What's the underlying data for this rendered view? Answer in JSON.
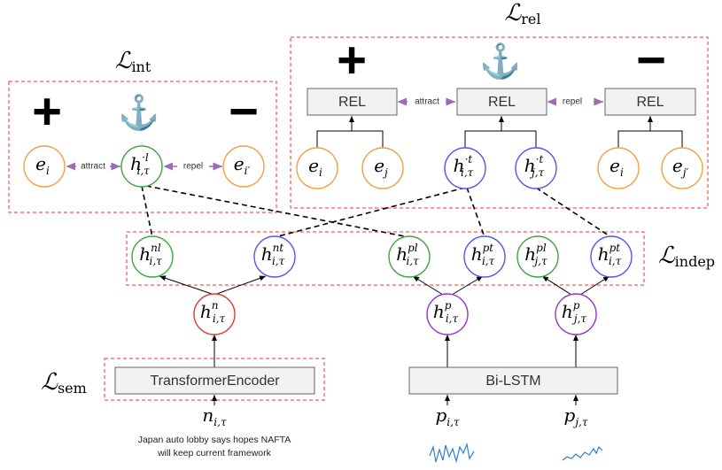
{
  "losses": [
    {
      "symbol": "ℒ",
      "sub": "int"
    },
    {
      "symbol": "ℒ",
      "sub": "rel"
    },
    {
      "symbol": "ℒ",
      "sub": "indep"
    },
    {
      "symbol": "ℒ",
      "sub": "sem"
    }
  ],
  "signs": {
    "left": [
      "+",
      "⚓",
      "−"
    ],
    "right": [
      "+",
      "⚓",
      "−"
    ]
  },
  "rel_boxes": [
    "REL",
    "REL",
    "REL"
  ],
  "relations": {
    "left": [
      "attract",
      "repel"
    ],
    "right": [
      "attract",
      "repel"
    ]
  },
  "encoders": [
    "TransformerEncoder",
    "Bi-LSTM"
  ],
  "caption": [
    "Japan auto lobby says hopes NAFTA",
    "will keep current framework"
  ],
  "nodes": [
    {
      "base": "e",
      "sup": "",
      "sub": "i",
      "color": "#f4a040"
    },
    {
      "base": "h",
      "sup": "·l",
      "sub": "i,τ",
      "color": "#3aa83a"
    },
    {
      "base": "e",
      "sup": "",
      "sub": "i′",
      "color": "#f4a040"
    },
    {
      "base": "e",
      "sup": "",
      "sub": "i",
      "color": "#f4a040"
    },
    {
      "base": "e",
      "sup": "",
      "sub": "j",
      "color": "#f4a040"
    },
    {
      "base": "h",
      "sup": "·t",
      "sub": "i,τ",
      "color": "#5555ee"
    },
    {
      "base": "h",
      "sup": "·t",
      "sub": "j,τ",
      "color": "#5555ee"
    },
    {
      "base": "e",
      "sup": "",
      "sub": "i",
      "color": "#f4a040"
    },
    {
      "base": "e",
      "sup": "",
      "sub": "j′",
      "color": "#f4a040"
    },
    {
      "base": "h",
      "sup": "nl",
      "sub": "i,τ",
      "color": "#3aa83a"
    },
    {
      "base": "h",
      "sup": "nt",
      "sub": "i,τ",
      "color": "#5555ee"
    },
    {
      "base": "h",
      "sup": "pl",
      "sub": "i,τ",
      "color": "#3aa83a"
    },
    {
      "base": "h",
      "sup": "pt",
      "sub": "i,τ",
      "color": "#5555ee"
    },
    {
      "base": "h",
      "sup": "pl",
      "sub": "j,τ",
      "color": "#3aa83a"
    },
    {
      "base": "h",
      "sup": "pt",
      "sub": "i,τ",
      "color": "#5555ee"
    },
    {
      "base": "h",
      "sup": "n",
      "sub": "i,τ",
      "color": "#e83535"
    },
    {
      "base": "h",
      "sup": "p",
      "sub": "i,τ",
      "color": "#9933cc"
    },
    {
      "base": "h",
      "sup": "p",
      "sub": "j,τ",
      "color": "#9933cc"
    }
  ],
  "inputs": [
    {
      "base": "n",
      "sub": "i,τ"
    },
    {
      "base": "p",
      "sub": "i,τ"
    },
    {
      "base": "p",
      "sub": "j,τ"
    }
  ]
}
